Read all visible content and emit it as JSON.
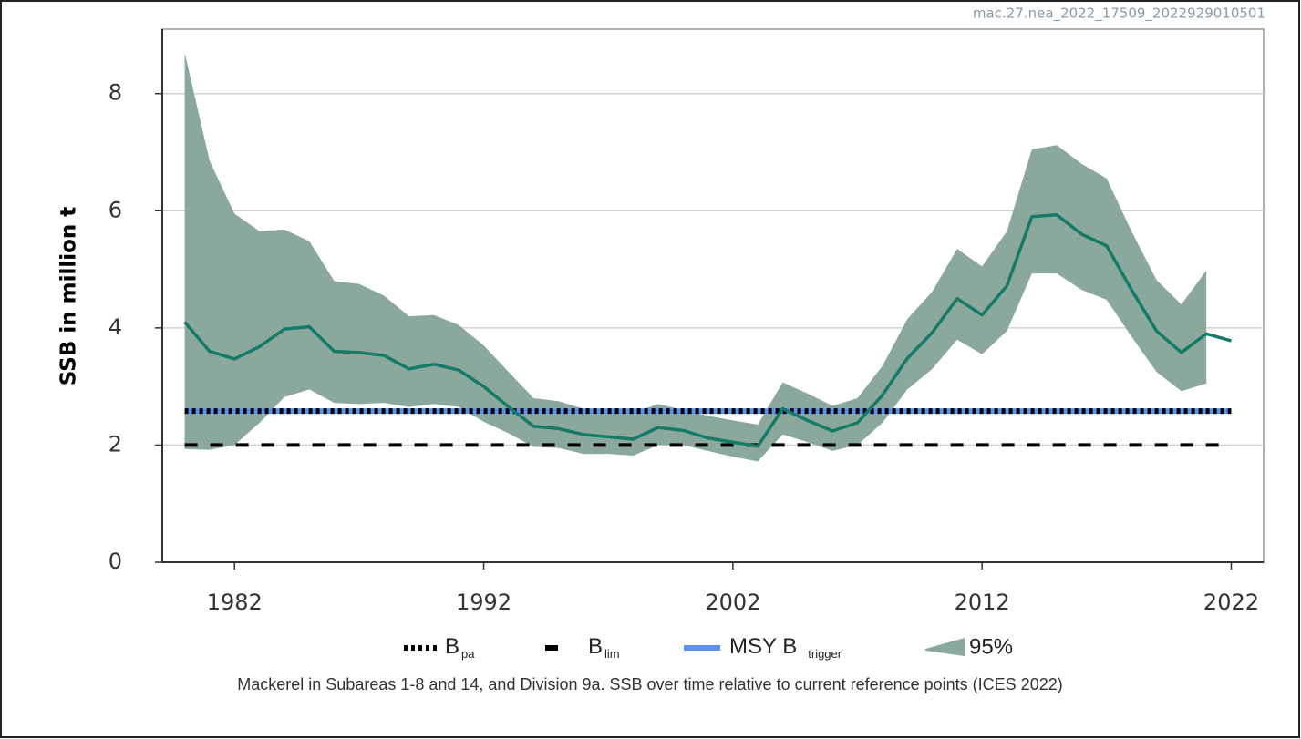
{
  "chart_data": {
    "type": "line",
    "watermark": "mac.27.nea_2022_17509_2022929010501",
    "ylabel": "SSB in million t",
    "caption": "Mackerel in Subareas 1-8 and 14, and Division 9a. SSB over time relative to current reference points (ICES 2022)",
    "x": [
      1980,
      1981,
      1982,
      1983,
      1984,
      1985,
      1986,
      1987,
      1988,
      1989,
      1990,
      1991,
      1992,
      1993,
      1994,
      1995,
      1996,
      1997,
      1998,
      1999,
      2000,
      2001,
      2002,
      2003,
      2004,
      2005,
      2006,
      2007,
      2008,
      2009,
      2010,
      2011,
      2012,
      2013,
      2014,
      2015,
      2016,
      2017,
      2018,
      2019,
      2020,
      2021,
      2022
    ],
    "series": [
      {
        "color": "#167a68",
        "values": [
          4.1,
          3.6,
          3.47,
          3.68,
          3.98,
          4.02,
          3.6,
          3.58,
          3.53,
          3.3,
          3.38,
          3.28,
          3.0,
          2.65,
          2.32,
          2.28,
          2.18,
          2.14,
          2.1,
          2.3,
          2.25,
          2.12,
          2.05,
          1.98,
          2.62,
          2.42,
          2.24,
          2.38,
          2.85,
          3.48,
          3.92,
          4.5,
          4.22,
          4.72,
          5.9,
          5.93,
          5.6,
          5.4,
          4.65,
          3.95,
          3.58,
          3.9,
          3.78
        ]
      }
    ],
    "band": {
      "name": "95%",
      "color": "#8aa99c",
      "upper": [
        8.7,
        6.85,
        5.95,
        5.65,
        5.68,
        5.48,
        4.8,
        4.75,
        4.55,
        4.2,
        4.22,
        4.05,
        3.7,
        3.25,
        2.8,
        2.75,
        2.62,
        2.6,
        2.55,
        2.7,
        2.6,
        2.5,
        2.42,
        2.35,
        3.07,
        2.88,
        2.67,
        2.8,
        3.35,
        4.15,
        4.62,
        5.35,
        5.05,
        5.65,
        7.05,
        7.12,
        6.8,
        6.55,
        5.65,
        4.82,
        4.4,
        4.98,
        null
      ],
      "lower": [
        1.93,
        1.92,
        2.0,
        2.38,
        2.82,
        2.95,
        2.72,
        2.7,
        2.72,
        2.65,
        2.7,
        2.65,
        2.4,
        2.2,
        1.97,
        1.95,
        1.85,
        1.85,
        1.82,
        2.0,
        2.0,
        1.9,
        1.8,
        1.72,
        2.18,
        2.05,
        1.9,
        2.0,
        2.38,
        2.95,
        3.3,
        3.8,
        3.55,
        3.95,
        4.93,
        4.93,
        4.65,
        4.48,
        3.85,
        3.25,
        2.92,
        3.05,
        null
      ]
    },
    "reference_lines": [
      {
        "name": "B",
        "subscript": "pa",
        "value": 2.58,
        "color": "#000000",
        "style": "dotted"
      },
      {
        "name": "B",
        "subscript": "lim",
        "value": 2.0,
        "color": "#000000",
        "style": "dashed"
      },
      {
        "name": "MSY B",
        "subscript": "trigger",
        "value": 2.58,
        "color": "#5b8ff0",
        "style": "solid"
      }
    ],
    "xlim": [
      1979.1,
      2023.3
    ],
    "xticks": [
      1982,
      1992,
      2002,
      2012,
      2022
    ],
    "ylim": [
      0,
      9.1
    ],
    "yticks": [
      0,
      2,
      4,
      6,
      8
    ],
    "grid": true
  }
}
